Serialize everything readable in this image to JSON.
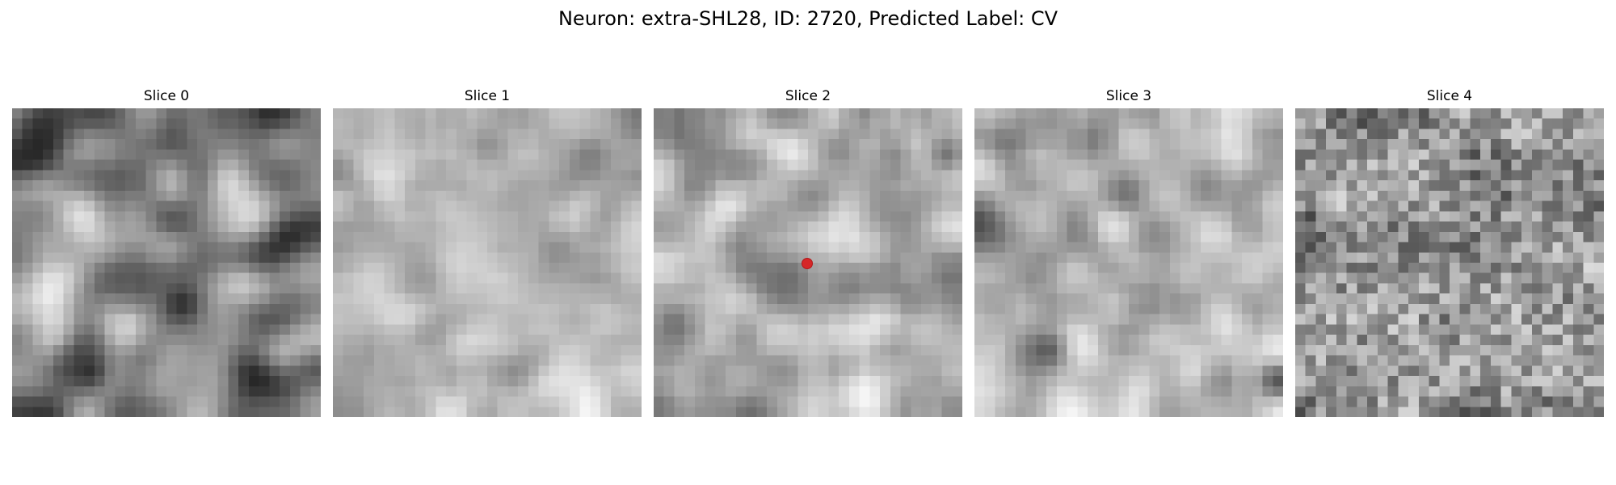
{
  "figure": {
    "title": "Neuron: extra-SHL28, ID: 2720, Predicted Label: CV"
  },
  "panels": [
    {
      "title": "Slice 0",
      "texture": "blobs",
      "seed": 11
    },
    {
      "title": "Slice 1",
      "texture": "light-mottled",
      "seed": 23
    },
    {
      "title": "Slice 2",
      "texture": "light-with-dark-cell",
      "seed": 37,
      "has_marker": true
    },
    {
      "title": "Slice 3",
      "texture": "mottled",
      "seed": 51
    },
    {
      "title": "Slice 4",
      "texture": "noisy",
      "seed": 67
    }
  ],
  "colors": {
    "marker": "#d62728",
    "background": "#ffffff"
  },
  "colormap": "gray"
}
